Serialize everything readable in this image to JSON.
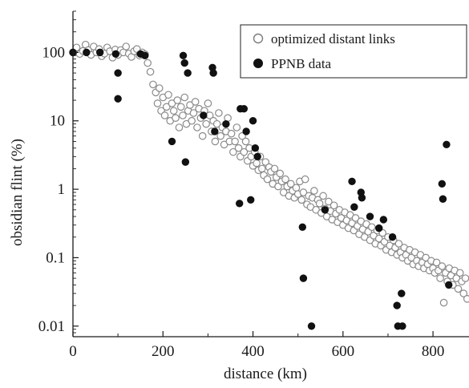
{
  "chart_data": {
    "type": "scatter",
    "title": "",
    "xlabel": "distance (km)",
    "ylabel": "obsidian flint (%)",
    "xlim": [
      0,
      880
    ],
    "ylim": [
      0.007,
      400
    ],
    "y_scale": "log",
    "grid": false,
    "legend_position": "top-right",
    "x_ticks": [
      {
        "value": 0,
        "label": "0"
      },
      {
        "value": 200,
        "label": "200"
      },
      {
        "value": 400,
        "label": "400"
      },
      {
        "value": 600,
        "label": "600"
      },
      {
        "value": 800,
        "label": "800"
      }
    ],
    "y_ticks": [
      {
        "value": 100,
        "label": "100"
      },
      {
        "value": 10,
        "label": "10"
      },
      {
        "value": 1,
        "label": "1"
      },
      {
        "value": 0.1,
        "label": "0.1"
      },
      {
        "value": 0.01,
        "label": "0.01"
      }
    ],
    "series": [
      {
        "name": "optimized distant links",
        "marker": "open-circle",
        "color": "#8a8a8a",
        "points": [
          [
            0,
            100
          ],
          [
            8,
            118
          ],
          [
            15,
            95
          ],
          [
            22,
            105
          ],
          [
            28,
            130
          ],
          [
            34,
            108
          ],
          [
            40,
            92
          ],
          [
            46,
            122
          ],
          [
            52,
            100
          ],
          [
            58,
            112
          ],
          [
            64,
            88
          ],
          [
            70,
            96
          ],
          [
            76,
            118
          ],
          [
            82,
            104
          ],
          [
            88,
            84
          ],
          [
            94,
            110
          ],
          [
            100,
            92
          ],
          [
            106,
            108
          ],
          [
            112,
            100
          ],
          [
            118,
            122
          ],
          [
            124,
            96
          ],
          [
            130,
            86
          ],
          [
            136,
            104
          ],
          [
            142,
            112
          ],
          [
            148,
            90
          ],
          [
            154,
            100
          ],
          [
            160,
            94
          ],
          [
            166,
            70
          ],
          [
            172,
            52
          ],
          [
            178,
            34
          ],
          [
            184,
            26
          ],
          [
            188,
            18
          ],
          [
            192,
            30
          ],
          [
            196,
            14
          ],
          [
            200,
            22
          ],
          [
            204,
            12
          ],
          [
            208,
            16
          ],
          [
            212,
            24
          ],
          [
            216,
            10
          ],
          [
            220,
            18
          ],
          [
            224,
            14
          ],
          [
            228,
            11
          ],
          [
            232,
            20
          ],
          [
            236,
            8
          ],
          [
            240,
            16
          ],
          [
            244,
            12
          ],
          [
            248,
            22
          ],
          [
            252,
            9
          ],
          [
            256,
            14
          ],
          [
            260,
            17
          ],
          [
            264,
            10
          ],
          [
            268,
            13
          ],
          [
            272,
            19
          ],
          [
            276,
            8
          ],
          [
            280,
            15
          ],
          [
            284,
            11
          ],
          [
            288,
            6
          ],
          [
            292,
            14
          ],
          [
            296,
            9
          ],
          [
            300,
            18
          ],
          [
            304,
            12
          ],
          [
            308,
            7
          ],
          [
            312,
            10
          ],
          [
            316,
            5
          ],
          [
            320,
            9
          ],
          [
            324,
            13
          ],
          [
            328,
            6
          ],
          [
            332,
            8
          ],
          [
            336,
            4.5
          ],
          [
            340,
            7
          ],
          [
            344,
            11
          ],
          [
            348,
            5
          ],
          [
            352,
            6.5
          ],
          [
            356,
            3.5
          ],
          [
            360,
            5
          ],
          [
            364,
            8
          ],
          [
            368,
            4
          ],
          [
            372,
            3
          ],
          [
            376,
            6
          ],
          [
            380,
            3.5
          ],
          [
            384,
            5
          ],
          [
            388,
            2.6
          ],
          [
            392,
            4
          ],
          [
            396,
            3
          ],
          [
            400,
            2.2
          ],
          [
            404,
            3.5
          ],
          [
            408,
            2.4
          ],
          [
            412,
            1.9
          ],
          [
            416,
            3
          ],
          [
            420,
            2
          ],
          [
            424,
            1.6
          ],
          [
            428,
            2.5
          ],
          [
            432,
            1.4
          ],
          [
            436,
            2.1
          ],
          [
            440,
            1.8
          ],
          [
            444,
            1.2
          ],
          [
            448,
            2
          ],
          [
            452,
            1.5
          ],
          [
            456,
            1.1
          ],
          [
            460,
            1.7
          ],
          [
            464,
            1.3
          ],
          [
            468,
            0.9
          ],
          [
            472,
            1.4
          ],
          [
            476,
            1.1
          ],
          [
            480,
            0.8
          ],
          [
            484,
            1.2
          ],
          [
            488,
            0.95
          ],
          [
            492,
            0.75
          ],
          [
            496,
            1.05
          ],
          [
            500,
            0.85
          ],
          [
            504,
            1.3
          ],
          [
            508,
            0.7
          ],
          [
            512,
            0.9
          ],
          [
            516,
            1.4
          ],
          [
            520,
            0.6
          ],
          [
            524,
            0.8
          ],
          [
            528,
            0.55
          ],
          [
            532,
            0.75
          ],
          [
            536,
            0.95
          ],
          [
            540,
            0.5
          ],
          [
            544,
            0.7
          ],
          [
            548,
            0.62
          ],
          [
            552,
            0.45
          ],
          [
            556,
            0.8
          ],
          [
            560,
            0.52
          ],
          [
            564,
            0.4
          ],
          [
            568,
            0.66
          ],
          [
            572,
            0.48
          ],
          [
            576,
            0.36
          ],
          [
            580,
            0.58
          ],
          [
            584,
            0.44
          ],
          [
            588,
            0.33
          ],
          [
            592,
            0.5
          ],
          [
            596,
            0.38
          ],
          [
            600,
            0.3
          ],
          [
            604,
            0.46
          ],
          [
            608,
            0.35
          ],
          [
            612,
            0.27
          ],
          [
            616,
            0.42
          ],
          [
            620,
            0.32
          ],
          [
            624,
            0.25
          ],
          [
            628,
            0.38
          ],
          [
            632,
            0.29
          ],
          [
            636,
            0.22
          ],
          [
            640,
            0.34
          ],
          [
            644,
            0.26
          ],
          [
            648,
            0.2
          ],
          [
            652,
            0.31
          ],
          [
            656,
            0.24
          ],
          [
            660,
            0.18
          ],
          [
            664,
            0.28
          ],
          [
            668,
            0.21
          ],
          [
            672,
            0.16
          ],
          [
            676,
            0.25
          ],
          [
            680,
            0.19
          ],
          [
            684,
            0.15
          ],
          [
            688,
            0.23
          ],
          [
            692,
            0.17
          ],
          [
            696,
            0.13
          ],
          [
            700,
            0.2
          ],
          [
            704,
            0.15
          ],
          [
            708,
            0.12
          ],
          [
            712,
            0.18
          ],
          [
            716,
            0.14
          ],
          [
            720,
            0.11
          ],
          [
            724,
            0.16
          ],
          [
            728,
            0.12
          ],
          [
            732,
            0.1
          ],
          [
            736,
            0.14
          ],
          [
            740,
            0.11
          ],
          [
            744,
            0.09
          ],
          [
            748,
            0.13
          ],
          [
            752,
            0.1
          ],
          [
            756,
            0.08
          ],
          [
            760,
            0.12
          ],
          [
            764,
            0.09
          ],
          [
            768,
            0.075
          ],
          [
            772,
            0.11
          ],
          [
            776,
            0.085
          ],
          [
            780,
            0.07
          ],
          [
            784,
            0.1
          ],
          [
            788,
            0.08
          ],
          [
            792,
            0.065
          ],
          [
            796,
            0.09
          ],
          [
            800,
            0.07
          ],
          [
            804,
            0.06
          ],
          [
            808,
            0.085
          ],
          [
            812,
            0.065
          ],
          [
            816,
            0.05
          ],
          [
            820,
            0.075
          ],
          [
            824,
            0.022
          ],
          [
            828,
            0.06
          ],
          [
            832,
            0.045
          ],
          [
            836,
            0.07
          ],
          [
            840,
            0.055
          ],
          [
            844,
            0.04
          ],
          [
            848,
            0.065
          ],
          [
            852,
            0.05
          ],
          [
            856,
            0.035
          ],
          [
            860,
            0.06
          ],
          [
            864,
            0.045
          ],
          [
            868,
            0.03
          ],
          [
            872,
            0.05
          ],
          [
            876,
            0.025
          ]
        ]
      },
      {
        "name": "PPNB data",
        "marker": "filled-circle",
        "color": "#111111",
        "points": [
          [
            0,
            100
          ],
          [
            30,
            100
          ],
          [
            60,
            100
          ],
          [
            95,
            95
          ],
          [
            100,
            50
          ],
          [
            100,
            21
          ],
          [
            150,
            95
          ],
          [
            160,
            90
          ],
          [
            220,
            5
          ],
          [
            245,
            90
          ],
          [
            248,
            70
          ],
          [
            250,
            2.5
          ],
          [
            255,
            50
          ],
          [
            290,
            12
          ],
          [
            310,
            60
          ],
          [
            312,
            50
          ],
          [
            315,
            7
          ],
          [
            340,
            9
          ],
          [
            370,
            0.62
          ],
          [
            372,
            15
          ],
          [
            380,
            15
          ],
          [
            385,
            7
          ],
          [
            395,
            0.7
          ],
          [
            400,
            10
          ],
          [
            405,
            4
          ],
          [
            410,
            3
          ],
          [
            510,
            0.28
          ],
          [
            512,
            0.05
          ],
          [
            530,
            0.01
          ],
          [
            560,
            0.5
          ],
          [
            620,
            1.3
          ],
          [
            625,
            0.55
          ],
          [
            640,
            0.9
          ],
          [
            642,
            0.75
          ],
          [
            660,
            0.4
          ],
          [
            680,
            0.27
          ],
          [
            690,
            0.36
          ],
          [
            710,
            0.2
          ],
          [
            720,
            0.02
          ],
          [
            722,
            0.01
          ],
          [
            730,
            0.03
          ],
          [
            732,
            0.01
          ],
          [
            820,
            1.2
          ],
          [
            822,
            0.72
          ],
          [
            830,
            4.5
          ],
          [
            835,
            0.04
          ]
        ]
      }
    ]
  }
}
